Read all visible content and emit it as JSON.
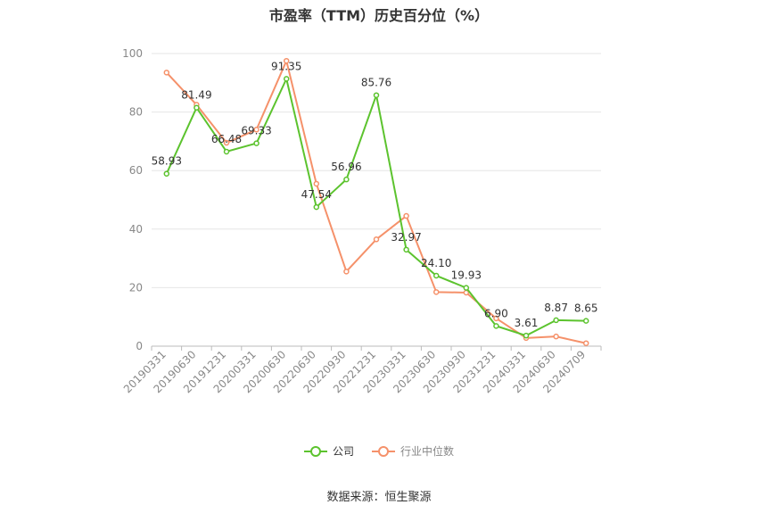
{
  "chart_data": {
    "type": "line",
    "title": "市盈率（TTM）历史百分位（%）",
    "categories": [
      "20190331",
      "20190630",
      "20191231",
      "20200331",
      "20200630",
      "20220630",
      "20220930",
      "20221231",
      "20230331",
      "20230630",
      "20230930",
      "20231231",
      "20240331",
      "20240630",
      "20240709"
    ],
    "ylim": [
      0,
      100
    ],
    "yticks": [
      0,
      20,
      40,
      60,
      80,
      100
    ],
    "grid": true,
    "legend_position": "bottom",
    "series": [
      {
        "name": "公司",
        "color": "#5cc32e",
        "values": [
          58.93,
          81.49,
          66.48,
          69.33,
          91.35,
          47.54,
          56.96,
          85.76,
          32.97,
          24.1,
          19.93,
          6.9,
          3.61,
          8.87,
          8.65
        ],
        "labels": [
          "58.93",
          "81.49",
          "66.48",
          "69.33",
          "91.35",
          "47.54",
          "56.96",
          "85.76",
          "32.97",
          "24.10",
          "19.93",
          "6.90",
          "3.61",
          "8.87",
          "8.65"
        ]
      },
      {
        "name": "行业中位数",
        "color": "#f5916a",
        "values": [
          93.5,
          82.5,
          69.5,
          74,
          97.5,
          55.5,
          25.5,
          36.5,
          44.5,
          18.5,
          18.3,
          9.5,
          2.8,
          3.3,
          1.0
        ]
      }
    ]
  },
  "source": "数据来源：恒生聚源"
}
